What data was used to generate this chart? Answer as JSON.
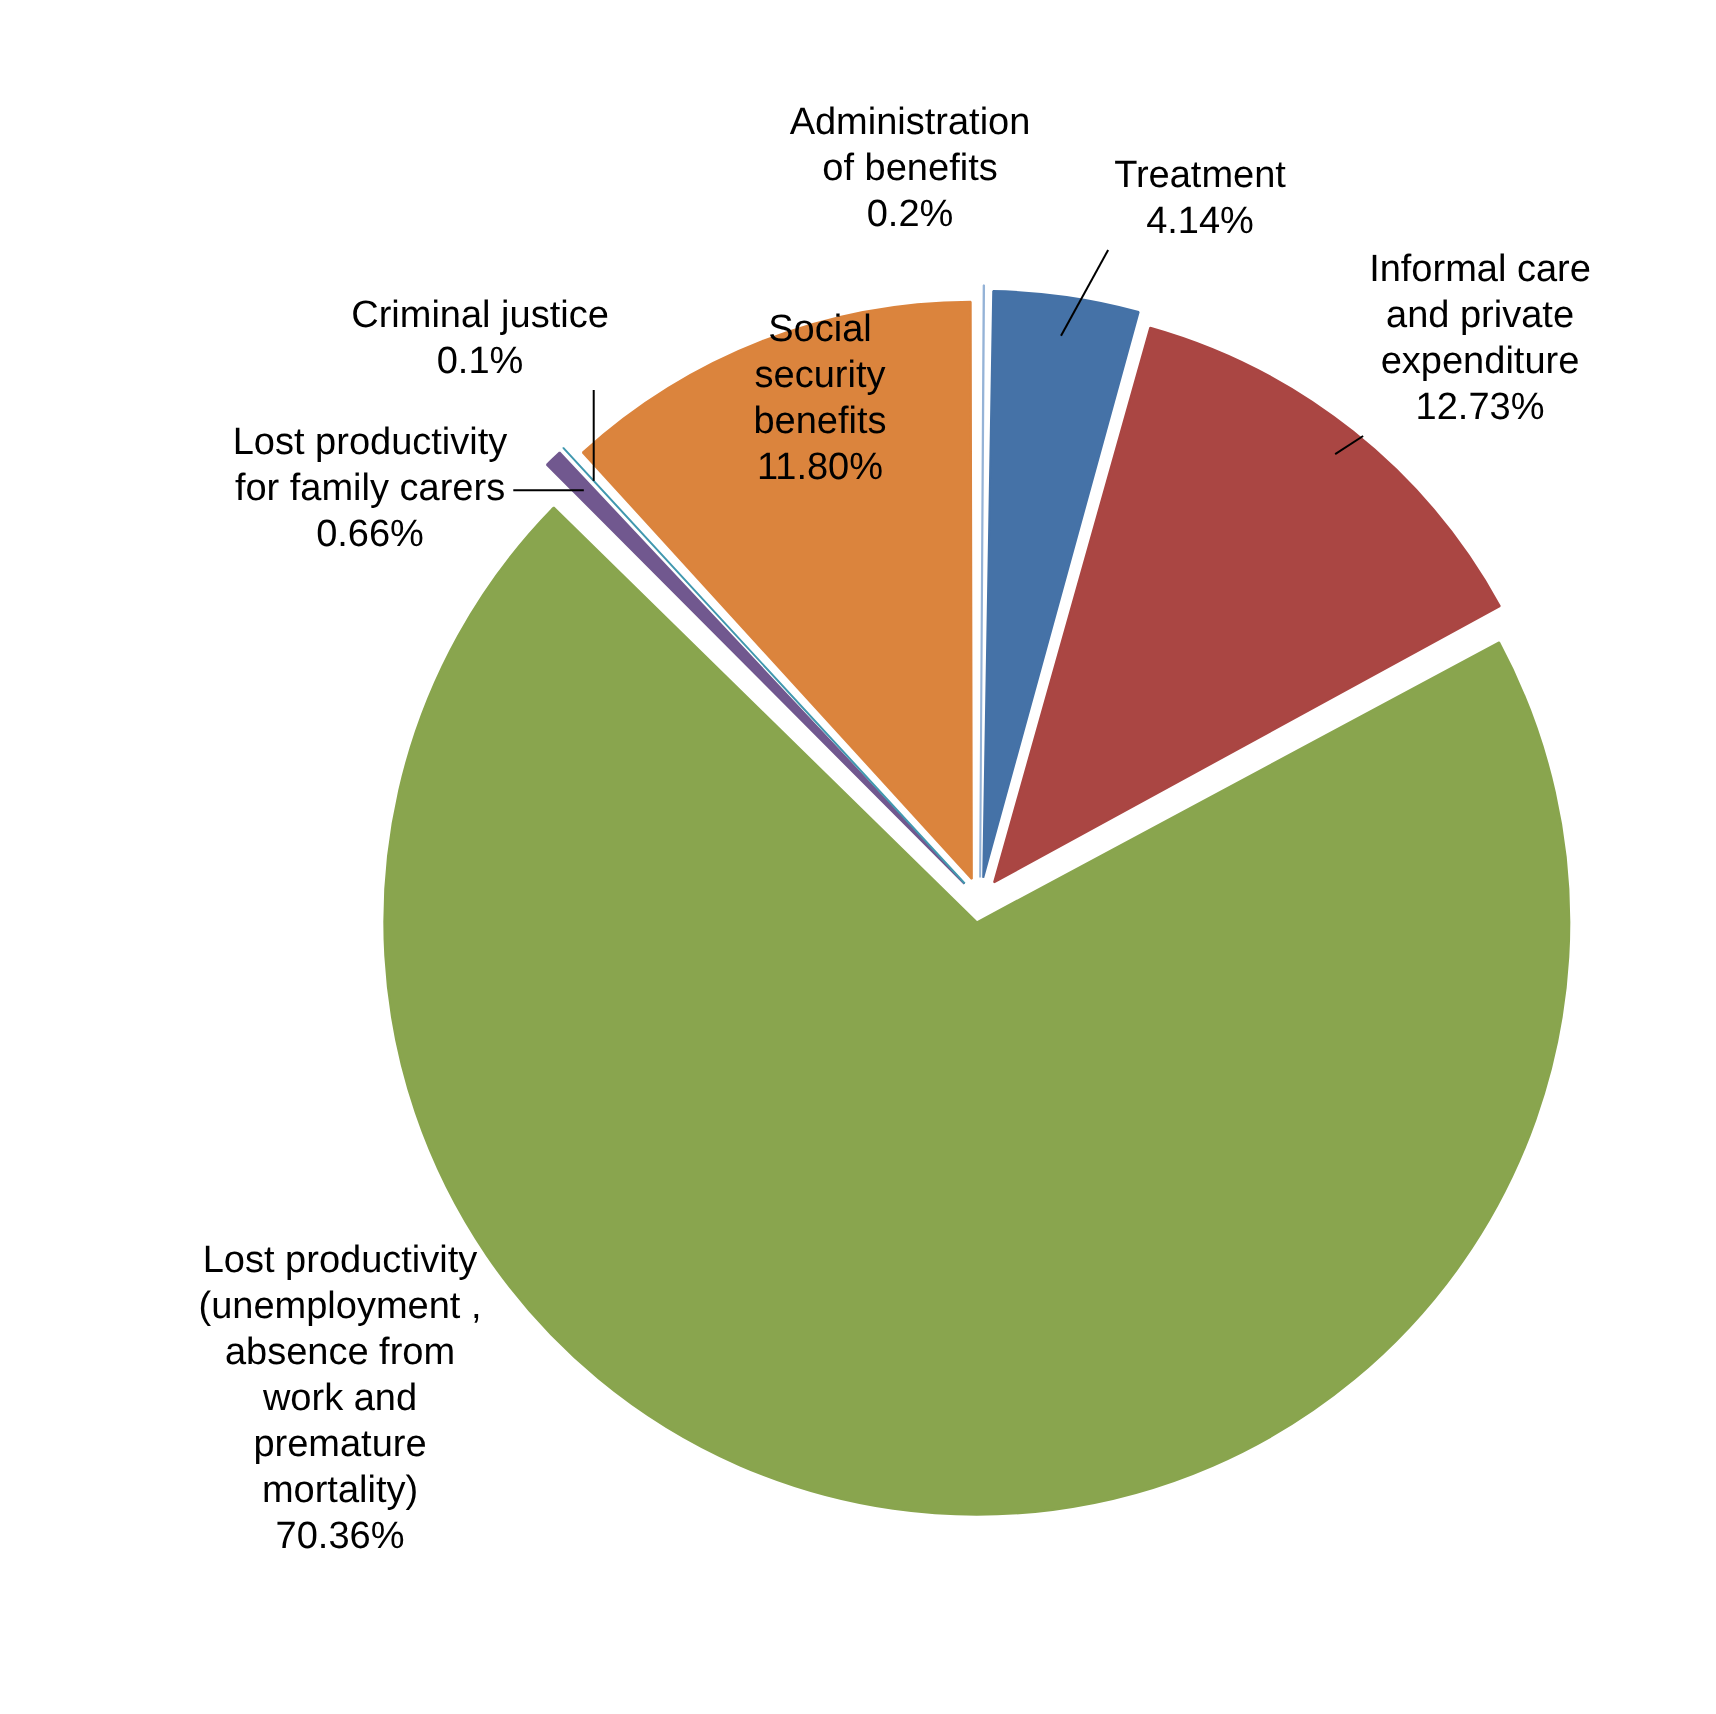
{
  "chart_data": {
    "type": "pie",
    "categories": [
      "Administration of benefits",
      "Treatment",
      "Informal care and private expenditure",
      "Lost productivity (unemployment , absence from work and premature mortality)",
      "Lost productivity for family carers",
      "Criminal justice",
      "Social security benefits"
    ],
    "values": [
      0.2,
      4.14,
      12.73,
      70.36,
      0.66,
      0.1,
      11.8
    ],
    "value_labels": [
      "0.2%",
      "4.14%",
      "12.73%",
      "70.36%",
      "0.66%",
      "0.1%",
      "11.80%"
    ],
    "colors": [
      "#95b3d7",
      "#4572a7",
      "#aa4643",
      "#89a54e",
      "#71588f",
      "#4198af",
      "#db843d"
    ],
    "legend": false
  }
}
